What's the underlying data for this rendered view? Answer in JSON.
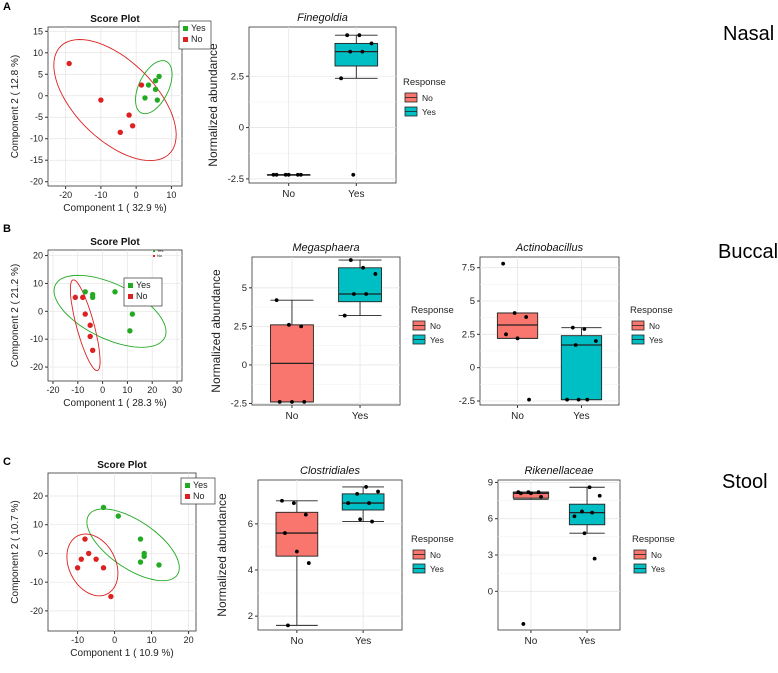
{
  "panel_letters": [
    "A",
    "B",
    "C"
  ],
  "row_labels": [
    "Nasal",
    "Buccal",
    "Stool"
  ],
  "colors": {
    "no": "#dd2020",
    "yes": "#22aa22",
    "box_no": "#f8766d",
    "box_yes": "#00bfc4"
  },
  "chart_data": [
    {
      "type": "scatter",
      "id": "nasal-score",
      "title": "Score Plot",
      "xlabel": "Component 1 ( 32.9 %)",
      "ylabel": "Component 2 ( 12.8 %)",
      "xlim": [
        -25,
        13
      ],
      "ylim": [
        -21,
        16
      ],
      "xticks": [
        -20,
        -10,
        0,
        10
      ],
      "yticks": [
        -20,
        -15,
        -10,
        -5,
        0,
        5,
        10,
        15
      ],
      "legend": [
        "Yes",
        "No"
      ],
      "series": [
        {
          "name": "Yes",
          "points": [
            [
              6.5,
              4.5
            ],
            [
              3.5,
              2.5
            ],
            [
              5.5,
              3.5
            ],
            [
              5.5,
              1.5
            ],
            [
              2.5,
              -0.5
            ],
            [
              6.0,
              -1.0
            ]
          ]
        },
        {
          "name": "No",
          "points": [
            [
              -19,
              7.5
            ],
            [
              -10,
              -1
            ],
            [
              1.5,
              2.5
            ],
            [
              -2,
              -4.5
            ],
            [
              -1,
              -7
            ],
            [
              -4.5,
              -8.5
            ]
          ]
        }
      ],
      "ellipses": [
        {
          "name": "No",
          "cx": -6,
          "cy": -1,
          "rx": 20,
          "ry": 10,
          "angle_deg": -35
        },
        {
          "name": "Yes",
          "cx": 5,
          "cy": 2,
          "rx": 7,
          "ry": 4,
          "angle_deg": 55
        }
      ]
    },
    {
      "type": "box",
      "id": "finegoldia",
      "title": "Finegoldia",
      "ylabel": "Normalized abundance",
      "categories": [
        "No",
        "Yes"
      ],
      "ylim": [
        -2.7,
        4.9
      ],
      "yticks": [
        -2.5,
        0.0,
        2.5
      ],
      "legend_title": "Response",
      "legend": [
        "No",
        "Yes"
      ],
      "boxes": [
        {
          "name": "No",
          "q1": -2.3,
          "median": -2.3,
          "q3": -2.3,
          "whisker_low": -2.3,
          "whisker_high": -2.3
        },
        {
          "name": "Yes",
          "q1": 3.0,
          "median": 3.7,
          "q3": 4.1,
          "whisker_low": 2.4,
          "whisker_high": 4.5
        }
      ],
      "points": [
        [
          0,
          -2.3
        ],
        [
          0,
          -2.3
        ],
        [
          0,
          -2.3
        ],
        [
          0,
          -2.3
        ],
        [
          0,
          -2.3
        ],
        [
          0,
          -2.3
        ],
        [
          1,
          4.5
        ],
        [
          1,
          4.5
        ],
        [
          1,
          4.1
        ],
        [
          1,
          3.7
        ],
        [
          1,
          3.7
        ],
        [
          1,
          2.4
        ],
        [
          1,
          -2.3
        ]
      ]
    },
    {
      "type": "scatter",
      "id": "buccal-score",
      "title": "Score Plot",
      "xlabel": "Component 1 ( 28.3 %)",
      "ylabel": "Component 2 ( 21.2 %)",
      "xlim": [
        -22,
        32
      ],
      "ylim": [
        -25,
        22
      ],
      "xticks": [
        -20,
        -10,
        0,
        10,
        20,
        30
      ],
      "yticks": [
        -20,
        -10,
        0,
        10,
        20
      ],
      "legend": [
        "Yes",
        "No"
      ],
      "legend2": [
        "Yes",
        "No"
      ],
      "series": [
        {
          "name": "Yes",
          "points": [
            [
              -7,
              7
            ],
            [
              -4,
              5
            ],
            [
              -4,
              6
            ],
            [
              5,
              7
            ],
            [
              10,
              6
            ],
            [
              12,
              -1
            ],
            [
              11,
              -7
            ]
          ]
        },
        {
          "name": "No",
          "points": [
            [
              -11,
              5
            ],
            [
              -8,
              5
            ],
            [
              -7,
              -1
            ],
            [
              -5,
              -5
            ],
            [
              -5,
              -9
            ],
            [
              -4,
              -14
            ]
          ]
        }
      ],
      "ellipses": [
        {
          "name": "Yes",
          "cx": 3,
          "cy": 0,
          "rx": 24,
          "ry": 10,
          "angle_deg": -22
        },
        {
          "name": "No",
          "cx": -7,
          "cy": -5,
          "rx": 17,
          "ry": 3.5,
          "angle_deg": -73
        }
      ]
    },
    {
      "type": "box",
      "id": "megasphaera",
      "title": "Megasphaera",
      "ylabel": "Normalized abundance",
      "categories": [
        "No",
        "Yes"
      ],
      "ylim": [
        -2.6,
        7.0
      ],
      "yticks": [
        -2.5,
        0.0,
        2.5,
        5.0
      ],
      "legend_title": "Response",
      "legend": [
        "No",
        "Yes"
      ],
      "boxes": [
        {
          "name": "No",
          "q1": -2.4,
          "median": 0.1,
          "q3": 2.6,
          "whisker_low": -2.4,
          "whisker_high": 4.2
        },
        {
          "name": "Yes",
          "q1": 4.1,
          "median": 4.6,
          "q3": 6.3,
          "whisker_low": 3.2,
          "whisker_high": 6.8
        }
      ],
      "points": [
        [
          0,
          4.2
        ],
        [
          0,
          2.6
        ],
        [
          0,
          2.5
        ],
        [
          0,
          -2.4
        ],
        [
          0,
          -2.4
        ],
        [
          0,
          -2.4
        ],
        [
          1,
          6.8
        ],
        [
          1,
          6.3
        ],
        [
          1,
          5.9
        ],
        [
          1,
          4.6
        ],
        [
          1,
          4.6
        ],
        [
          1,
          3.2
        ]
      ]
    },
    {
      "type": "box",
      "id": "actinobacillus",
      "title": "Actinobacillus",
      "ylabel": "",
      "categories": [
        "No",
        "Yes"
      ],
      "ylim": [
        -2.8,
        8.3
      ],
      "yticks": [
        -2.5,
        0.0,
        2.5,
        5.0,
        7.5
      ],
      "legend_title": "Response",
      "legend": [
        "No",
        "Yes"
      ],
      "boxes": [
        {
          "name": "No",
          "q1": 2.2,
          "median": 3.2,
          "q3": 4.1,
          "whisker_low": 2.2,
          "whisker_high": 4.1
        },
        {
          "name": "Yes",
          "q1": -2.4,
          "median": 1.7,
          "q3": 2.4,
          "whisker_low": -2.4,
          "whisker_high": 3.0
        }
      ],
      "points": [
        [
          0,
          7.8
        ],
        [
          0,
          4.1
        ],
        [
          0,
          3.8
        ],
        [
          0,
          2.5
        ],
        [
          0,
          2.2
        ],
        [
          0,
          -2.4
        ],
        [
          1,
          3.0
        ],
        [
          1,
          2.9
        ],
        [
          1,
          2.0
        ],
        [
          1,
          1.7
        ],
        [
          1,
          -2.4
        ],
        [
          1,
          -2.4
        ],
        [
          1,
          -2.4
        ]
      ]
    },
    {
      "type": "scatter",
      "id": "stool-score",
      "title": "Score Plot",
      "xlabel": "Component 1 ( 10.9 %)",
      "ylabel": "Component 2 ( 10.7 %)",
      "xlim": [
        -18,
        22
      ],
      "ylim": [
        -27,
        28
      ],
      "xticks": [
        -10,
        0,
        10,
        20
      ],
      "yticks": [
        -20,
        -10,
        0,
        10,
        20
      ],
      "legend": [
        "Yes",
        "No"
      ],
      "series": [
        {
          "name": "Yes",
          "points": [
            [
              -3,
              16
            ],
            [
              1,
              13
            ],
            [
              7,
              5
            ],
            [
              8,
              0
            ],
            [
              8,
              -1
            ],
            [
              7,
              -3
            ],
            [
              12,
              -4
            ]
          ]
        },
        {
          "name": "No",
          "points": [
            [
              -8,
              5
            ],
            [
              -7,
              0
            ],
            [
              -9,
              -2
            ],
            [
              -10,
              -5
            ],
            [
              -5,
              -2
            ],
            [
              -3,
              -5
            ],
            [
              -1,
              -15
            ]
          ]
        }
      ],
      "ellipses": [
        {
          "name": "Yes",
          "cx": 5,
          "cy": 3,
          "rx": 16,
          "ry": 7.5,
          "angle_deg": -45
        },
        {
          "name": "No",
          "cx": -6,
          "cy": -4,
          "rx": 11,
          "ry": 6.5,
          "angle_deg": -75
        }
      ]
    },
    {
      "type": "box",
      "id": "clostridiales",
      "title": "Clostridiales",
      "ylabel": "Normalized abundance",
      "categories": [
        "No",
        "Yes"
      ],
      "ylim": [
        1.4,
        7.9
      ],
      "yticks": [
        2,
        4,
        6
      ],
      "legend_title": "Response",
      "legend": [
        "No",
        "Yes"
      ],
      "boxes": [
        {
          "name": "No",
          "q1": 4.6,
          "median": 5.6,
          "q3": 6.5,
          "whisker_low": 1.6,
          "whisker_high": 7.0
        },
        {
          "name": "Yes",
          "q1": 6.6,
          "median": 6.9,
          "q3": 7.3,
          "whisker_low": 6.1,
          "whisker_high": 7.6
        }
      ],
      "points": [
        [
          0,
          7.0
        ],
        [
          0,
          6.9
        ],
        [
          0,
          6.4
        ],
        [
          0,
          5.6
        ],
        [
          0,
          4.8
        ],
        [
          0,
          4.3
        ],
        [
          0,
          1.6
        ],
        [
          1,
          7.6
        ],
        [
          1,
          7.4
        ],
        [
          1,
          7.3
        ],
        [
          1,
          6.9
        ],
        [
          1,
          6.9
        ],
        [
          1,
          6.2
        ],
        [
          1,
          6.1
        ]
      ]
    },
    {
      "type": "box",
      "id": "rikenellaceae",
      "title": "Rikenellaceae",
      "ylabel": "",
      "categories": [
        "No",
        "Yes"
      ],
      "ylim": [
        -3.2,
        9.2
      ],
      "yticks": [
        0,
        3,
        6,
        9
      ],
      "legend_title": "Response",
      "legend": [
        "No",
        "Yes"
      ],
      "boxes": [
        {
          "name": "No",
          "q1": 7.7,
          "median": 8.1,
          "q3": 8.2,
          "whisker_low": 7.6,
          "whisker_high": 8.2
        },
        {
          "name": "Yes",
          "q1": 5.5,
          "median": 6.5,
          "q3": 7.2,
          "whisker_low": 4.8,
          "whisker_high": 8.6
        }
      ],
      "points": [
        [
          0,
          8.2
        ],
        [
          0,
          8.2
        ],
        [
          0,
          8.2
        ],
        [
          0,
          8.1
        ],
        [
          0,
          8.1
        ],
        [
          0,
          7.8
        ],
        [
          0,
          -2.7
        ],
        [
          1,
          8.6
        ],
        [
          1,
          7.9
        ],
        [
          1,
          6.6
        ],
        [
          1,
          6.5
        ],
        [
          1,
          6.2
        ],
        [
          1,
          4.8
        ],
        [
          1,
          2.7
        ]
      ]
    }
  ]
}
